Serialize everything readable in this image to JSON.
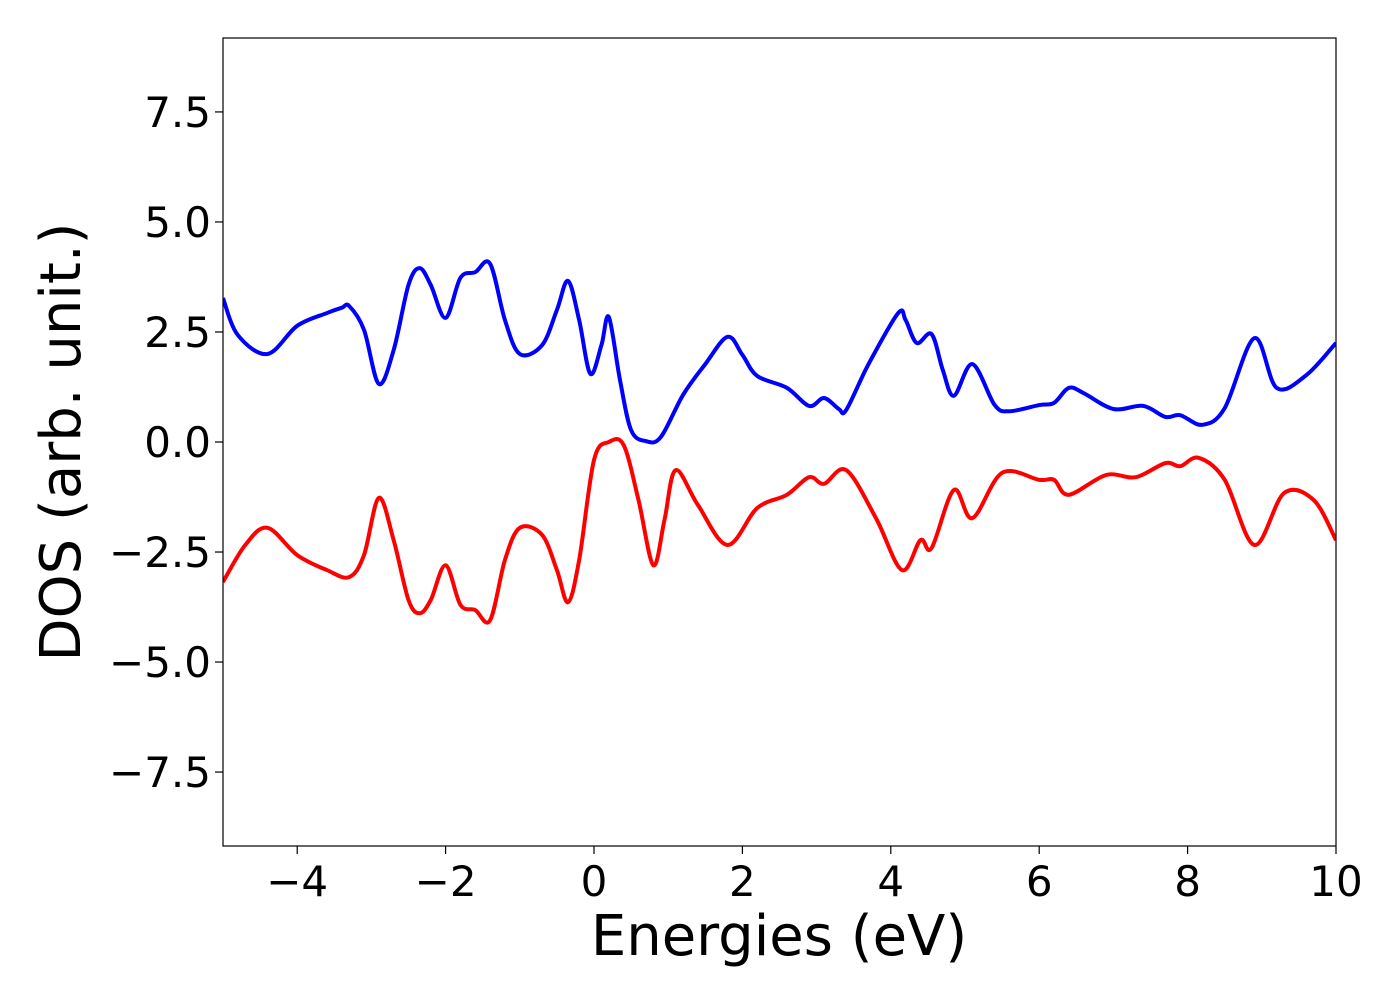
{
  "chart_data": {
    "type": "line",
    "xlabel": "Energies (eV)",
    "ylabel": "DOS (arb. unit.)",
    "xlim": [
      -5,
      10
    ],
    "ylim": [
      -9.18,
      9.18
    ],
    "xticks": [
      {
        "value": -4,
        "label": "−4"
      },
      {
        "value": -2,
        "label": "−2"
      },
      0,
      2,
      4,
      6,
      8,
      10
    ],
    "yticks": [
      {
        "value": -7.5,
        "label": "−7.5"
      },
      {
        "value": -5,
        "label": "−5.0"
      },
      {
        "value": -2.5,
        "label": "−2.5"
      },
      {
        "value": 0,
        "label": "0.0"
      },
      2.5,
      {
        "value": 5,
        "label": "5.0"
      },
      7.5
    ],
    "grid": false,
    "series": [
      {
        "color": "#0000ff",
        "x": [
          -5,
          -4.8,
          -4.4,
          -4.0,
          -3.6,
          -3.4,
          -3.3,
          -3.1,
          -2.9,
          -2.7,
          -2.5,
          -2.35,
          -2.2,
          -2.0,
          -1.8,
          -1.6,
          -1.4,
          -1.2,
          -1.0,
          -0.7,
          -0.5,
          -0.35,
          -0.2,
          -0.05,
          0.1,
          0.2,
          0.35,
          0.5,
          0.7,
          0.9,
          1.2,
          1.5,
          1.8,
          2.0,
          2.2,
          2.6,
          2.9,
          3.1,
          3.3,
          3.4,
          3.7,
          4.1,
          4.2,
          4.35,
          4.55,
          4.7,
          4.85,
          5.1,
          5.4,
          5.6,
          6.0,
          6.2,
          6.4,
          6.6,
          7.0,
          7.4,
          7.7,
          7.9,
          8.2,
          8.5,
          8.9,
          9.2,
          9.6,
          10.0
        ],
        "values": [
          3.27,
          2.43,
          2.0,
          2.64,
          2.93,
          3.05,
          3.09,
          2.55,
          1.32,
          2.09,
          3.57,
          3.95,
          3.57,
          2.82,
          3.73,
          3.86,
          4.05,
          2.77,
          2.0,
          2.2,
          3.0,
          3.66,
          2.77,
          1.55,
          2.2,
          2.84,
          1.41,
          0.27,
          0.02,
          0.11,
          1.07,
          1.77,
          2.39,
          1.98,
          1.5,
          1.23,
          0.82,
          1.0,
          0.75,
          0.73,
          1.77,
          2.93,
          2.77,
          2.25,
          2.45,
          1.64,
          1.05,
          1.77,
          0.84,
          0.7,
          0.84,
          0.89,
          1.23,
          1.11,
          0.75,
          0.82,
          0.57,
          0.61,
          0.39,
          0.77,
          2.36,
          1.23,
          1.52,
          2.25
        ]
      },
      {
        "color": "#ff0000",
        "x": [
          -5,
          -4.7,
          -4.4,
          -4.0,
          -3.6,
          -3.3,
          -3.1,
          -2.9,
          -2.7,
          -2.5,
          -2.35,
          -2.2,
          -2.0,
          -1.8,
          -1.6,
          -1.4,
          -1.2,
          -1.0,
          -0.7,
          -0.5,
          -0.35,
          -0.2,
          0.0,
          0.2,
          0.4,
          0.6,
          0.8,
          0.95,
          1.1,
          1.4,
          1.8,
          2.2,
          2.6,
          2.9,
          3.1,
          3.4,
          3.8,
          4.15,
          4.4,
          4.55,
          4.85,
          5.1,
          5.5,
          6.0,
          6.2,
          6.4,
          6.9,
          7.3,
          7.7,
          7.9,
          8.15,
          8.5,
          8.9,
          9.3,
          9.7,
          10.0
        ],
        "values": [
          -3.18,
          -2.34,
          -1.95,
          -2.57,
          -2.91,
          -3.07,
          -2.57,
          -1.27,
          -2.23,
          -3.59,
          -3.89,
          -3.59,
          -2.8,
          -3.7,
          -3.82,
          -4.05,
          -2.68,
          -1.95,
          -2.11,
          -2.91,
          -3.64,
          -2.68,
          -0.41,
          0.0,
          -0.07,
          -1.32,
          -2.8,
          -1.77,
          -0.64,
          -1.43,
          -2.34,
          -1.5,
          -1.2,
          -0.8,
          -0.95,
          -0.64,
          -1.73,
          -2.91,
          -2.23,
          -2.41,
          -1.09,
          -1.73,
          -0.7,
          -0.86,
          -0.86,
          -1.2,
          -0.75,
          -0.8,
          -0.48,
          -0.55,
          -0.36,
          -0.86,
          -2.34,
          -1.16,
          -1.32,
          -2.23
        ]
      }
    ]
  }
}
